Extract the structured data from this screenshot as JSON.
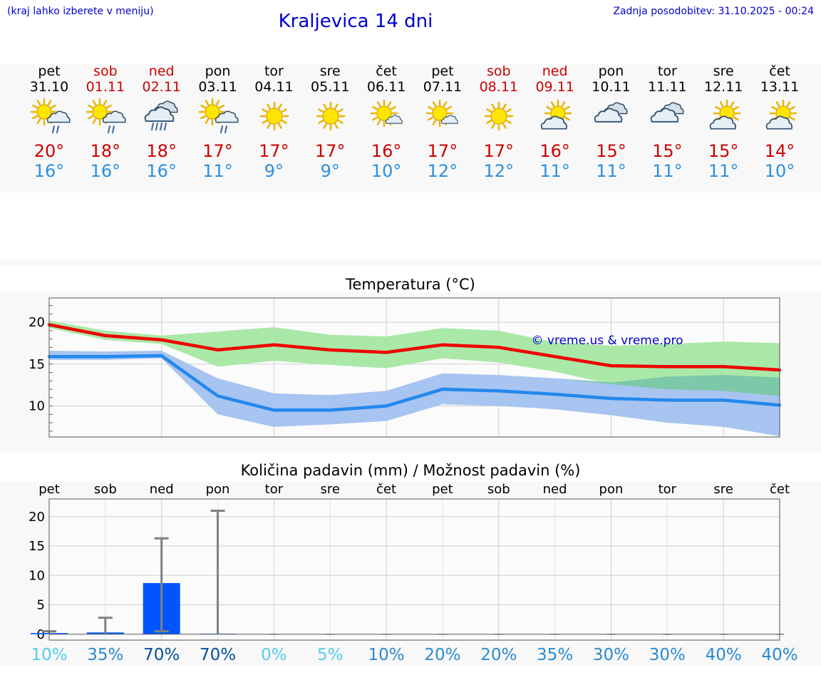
{
  "header": {
    "hint": "(kraj lahko izberete v meniju)",
    "title": "Kraljevica 14 dni",
    "updated": "Zadnja posodobitev: 31.10.2025 - 00:24"
  },
  "colors": {
    "link": "#0000cc",
    "weekday": "#000000",
    "weekend": "#cc0000",
    "tmax": "#cc0000",
    "tmin": "#2a8fe0",
    "max_line": "#ee0000",
    "max_band": "#aae8a8",
    "min_line": "#2288ee",
    "min_band": "#a8c4f0",
    "overlap_band": "#7cc8a8",
    "rain_bar": "#0055ff"
  },
  "days": [
    {
      "name": "pet",
      "date": "31.10",
      "weekend": false,
      "icon": "sun-cloud-rain-icon",
      "tmax": "20°",
      "tmin": "16°"
    },
    {
      "name": "sob",
      "date": "01.11",
      "weekend": true,
      "icon": "sun-cloud-rain-icon",
      "tmax": "18°",
      "tmin": "16°"
    },
    {
      "name": "ned",
      "date": "02.11",
      "weekend": true,
      "icon": "cloud-heavy-rain-icon",
      "tmax": "18°",
      "tmin": "16°"
    },
    {
      "name": "pon",
      "date": "03.11",
      "weekend": false,
      "icon": "sun-cloud-rain-icon",
      "tmax": "17°",
      "tmin": "11°"
    },
    {
      "name": "tor",
      "date": "04.11",
      "weekend": false,
      "icon": "sun-icon",
      "tmax": "17°",
      "tmin": "9°"
    },
    {
      "name": "sre",
      "date": "05.11",
      "weekend": false,
      "icon": "sun-icon",
      "tmax": "17°",
      "tmin": "9°"
    },
    {
      "name": "čet",
      "date": "06.11",
      "weekend": false,
      "icon": "sun-small-cloud-icon",
      "tmax": "16°",
      "tmin": "10°"
    },
    {
      "name": "pet",
      "date": "07.11",
      "weekend": false,
      "icon": "sun-small-cloud-icon",
      "tmax": "17°",
      "tmin": "12°"
    },
    {
      "name": "sob",
      "date": "08.11",
      "weekend": true,
      "icon": "sun-icon",
      "tmax": "17°",
      "tmin": "12°"
    },
    {
      "name": "ned",
      "date": "09.11",
      "weekend": true,
      "icon": "sun-cloud-icon",
      "tmax": "16°",
      "tmin": "11°"
    },
    {
      "name": "pon",
      "date": "10.11",
      "weekend": false,
      "icon": "cloud-icon",
      "tmax": "15°",
      "tmin": "11°"
    },
    {
      "name": "tor",
      "date": "11.11",
      "weekend": false,
      "icon": "cloud-icon",
      "tmax": "15°",
      "tmin": "11°"
    },
    {
      "name": "sre",
      "date": "12.11",
      "weekend": false,
      "icon": "sun-cloud-icon",
      "tmax": "15°",
      "tmin": "11°"
    },
    {
      "name": "čet",
      "date": "13.11",
      "weekend": false,
      "icon": "sun-cloud-icon",
      "tmax": "14°",
      "tmin": "10°"
    }
  ],
  "chart_data": [
    {
      "type": "line",
      "title": "Temperatura (°C)",
      "watermark": "© vreme.us & vreme.pro",
      "ylim": [
        6.3,
        22.9
      ],
      "yticks": [
        10,
        15,
        20
      ],
      "grid": true,
      "x": [
        0,
        1,
        2,
        3,
        4,
        5,
        6,
        7,
        8,
        9,
        10,
        11,
        12,
        13
      ],
      "categories": [
        "pet",
        "sob",
        "ned",
        "pon",
        "tor",
        "sre",
        "čet",
        "pet",
        "sob",
        "ned",
        "pon",
        "tor",
        "sre",
        "čet"
      ],
      "series": [
        {
          "name": "max",
          "values": [
            19.7,
            18.4,
            17.9,
            16.7,
            17.3,
            16.7,
            16.4,
            17.3,
            17.0,
            15.9,
            14.8,
            14.7,
            14.7,
            14.3
          ]
        },
        {
          "name": "max_high",
          "values": [
            20.2,
            19.0,
            18.4,
            18.9,
            19.4,
            18.5,
            18.3,
            19.3,
            19.0,
            17.6,
            17.2,
            17.4,
            17.7,
            17.5
          ]
        },
        {
          "name": "max_low",
          "values": [
            19.3,
            17.9,
            17.4,
            14.7,
            15.4,
            14.9,
            14.5,
            15.7,
            15.2,
            14.1,
            12.6,
            12.0,
            11.8,
            11.2
          ]
        },
        {
          "name": "min",
          "values": [
            15.9,
            15.9,
            16.0,
            11.2,
            9.5,
            9.5,
            10.0,
            12.0,
            11.8,
            11.4,
            10.9,
            10.7,
            10.7,
            10.1
          ]
        },
        {
          "name": "min_high",
          "values": [
            16.6,
            16.5,
            16.6,
            13.3,
            11.5,
            11.3,
            11.8,
            13.9,
            13.7,
            13.3,
            12.8,
            13.5,
            13.7,
            13.4
          ]
        },
        {
          "name": "min_low",
          "values": [
            15.5,
            15.5,
            15.7,
            9.0,
            7.5,
            7.8,
            8.2,
            10.2,
            10.0,
            9.6,
            8.9,
            8.0,
            7.5,
            6.4
          ]
        }
      ]
    },
    {
      "type": "bar",
      "title": "Količina padavin (mm) / Možnost padavin (%)",
      "ylim": [
        -1,
        23
      ],
      "yticks": [
        0,
        5,
        10,
        15,
        20
      ],
      "grid": true,
      "categories": [
        "pet",
        "sob",
        "ned",
        "pon",
        "tor",
        "sre",
        "čet",
        "pet",
        "sob",
        "ned",
        "pon",
        "tor",
        "sre",
        "čet"
      ],
      "values": [
        0.2,
        0.3,
        8.7,
        0.1,
        0,
        0,
        0,
        0,
        0,
        0,
        0,
        0,
        0,
        0
      ],
      "error_max": [
        0.5,
        2.8,
        16.3,
        21.0,
        0,
        0,
        0,
        0,
        0,
        0,
        0,
        0,
        0,
        0
      ],
      "error_min": [
        0,
        0,
        0.5,
        0,
        0,
        0,
        0,
        0,
        0,
        0,
        0,
        0,
        0,
        0
      ],
      "probabilities": [
        "10%",
        "35%",
        "70%",
        "70%",
        "0%",
        "5%",
        "10%",
        "20%",
        "20%",
        "35%",
        "30%",
        "30%",
        "40%",
        "40%"
      ],
      "probability_colors": [
        "#55ccee",
        "#2a8ad0",
        "#0050a0",
        "#0050a0",
        "#55ccee",
        "#55ccee",
        "#2a8ad0",
        "#2a8ad0",
        "#2a8ad0",
        "#2a8ad0",
        "#2a8ad0",
        "#2a8ad0",
        "#2a8ad0",
        "#2a8ad0"
      ]
    }
  ]
}
